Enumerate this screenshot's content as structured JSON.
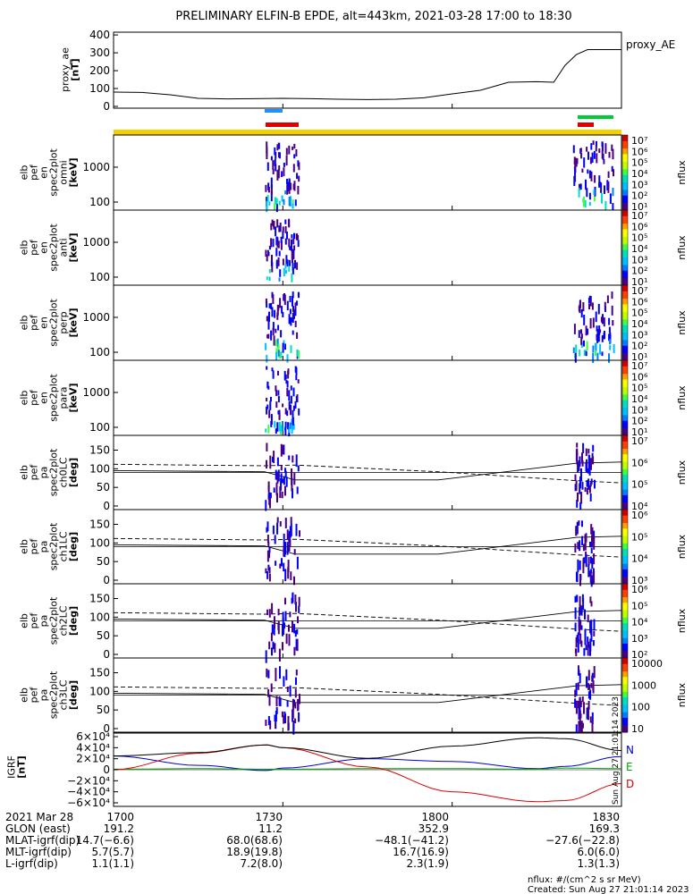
{
  "title": "PRELIMINARY ELFIN-B EPDE, alt=443km, 2021-03-28 17:00 to 18:30",
  "colors": {
    "status_yellow": "#f5d000",
    "science_red": "#e00000",
    "blue_bar": "#1e90ff",
    "green_bar": "#00cc33",
    "grf_north": "#0000cc",
    "grf_east": "#00aa00",
    "grf_down": "#dd0000"
  },
  "ae_panel": {
    "ylabel_lines": [
      "proxy_ae",
      "[nT]"
    ],
    "yticks": [
      "400",
      "300",
      "200",
      "100",
      "0"
    ],
    "legend": "proxy_AE"
  },
  "spec_panels": [
    {
      "ylabel_lines": [
        "elb",
        "pef",
        "en",
        "spec2plot",
        "omni",
        "[keV]"
      ],
      "yticks": [
        "1000",
        "100"
      ],
      "cbar_ticks": [
        "10⁷",
        "10⁶",
        "10⁵",
        "10⁴",
        "10³",
        "10²",
        "10¹"
      ],
      "cbar_label": "nflux"
    },
    {
      "ylabel_lines": [
        "elb",
        "pef",
        "en",
        "spec2plot",
        "anti",
        "[keV]"
      ],
      "yticks": [
        "1000",
        "100"
      ],
      "cbar_ticks": [
        "10⁷",
        "10⁶",
        "10⁵",
        "10⁴",
        "10³",
        "10²",
        "10¹"
      ],
      "cbar_label": "nflux"
    },
    {
      "ylabel_lines": [
        "elb",
        "pef",
        "en",
        "spec2plot",
        "perp",
        "[keV]"
      ],
      "yticks": [
        "1000",
        "100"
      ],
      "cbar_ticks": [
        "10⁷",
        "10⁶",
        "10⁵",
        "10⁴",
        "10³",
        "10²",
        "10¹"
      ],
      "cbar_label": "nflux"
    },
    {
      "ylabel_lines": [
        "elb",
        "pef",
        "en",
        "spec2plot",
        "para",
        "[keV]"
      ],
      "yticks": [
        "1000",
        "100"
      ],
      "cbar_ticks": [
        "10⁷",
        "10⁶",
        "10⁵",
        "10⁴",
        "10³",
        "10²",
        "10¹"
      ],
      "cbar_label": "nflux"
    }
  ],
  "pa_panels": [
    {
      "ylabel_lines": [
        "elb",
        "pef",
        "pa",
        "spec2plot",
        "ch0LC",
        "[deg]"
      ],
      "yticks": [
        "150",
        "100",
        "50",
        "0"
      ],
      "cbar_ticks": [
        "10⁷",
        "10⁶",
        "10⁵",
        "10⁴"
      ],
      "cbar_label": "nflux"
    },
    {
      "ylabel_lines": [
        "elb",
        "pef",
        "pa",
        "spec2plot",
        "ch1LC",
        "[deg]"
      ],
      "yticks": [
        "150",
        "100",
        "50",
        "0"
      ],
      "cbar_ticks": [
        "10⁶",
        "10⁵",
        "10⁴",
        "10³"
      ],
      "cbar_label": "nflux"
    },
    {
      "ylabel_lines": [
        "elb",
        "pef",
        "pa",
        "spec2plot",
        "ch2LC",
        "[deg]"
      ],
      "yticks": [
        "150",
        "100",
        "50",
        "0"
      ],
      "cbar_ticks": [
        "10⁶",
        "10⁵",
        "10⁴",
        "10³",
        "10²"
      ],
      "cbar_label": "nflux"
    },
    {
      "ylabel_lines": [
        "elb",
        "pef",
        "pa",
        "spec2plot",
        "ch3LC",
        "[deg]"
      ],
      "yticks": [
        "150",
        "100",
        "50",
        "0"
      ],
      "cbar_ticks": [
        "10000",
        "1000",
        "100",
        "10"
      ],
      "cbar_label": "nflux"
    }
  ],
  "grf_panel": {
    "ylabel_lines": [
      "IGRF",
      "[nT]"
    ],
    "yticks": [
      "6×10⁴",
      "4×10⁴",
      "2×10⁴",
      "0",
      "−2×10⁴",
      "−4×10⁴",
      "−6×10⁴"
    ],
    "legend": [
      "N",
      "E",
      "D"
    ],
    "side_stamp": "Sun Aug 27 21:01:14 2023"
  },
  "footer": {
    "row_labels": [
      "2021 Mar 28",
      "GLON (east)",
      "MLAT-igrf(dip)",
      "MLT-igrf(dip)",
      "L-igrf(dip)"
    ],
    "columns": [
      {
        "values": [
          "1700",
          "191.2",
          "14.7(−6.6)",
          "5.7(5.7)",
          "1.1(1.1)"
        ]
      },
      {
        "values": [
          "1730",
          "11.2",
          "68.0(68.6)",
          "18.9(19.8)",
          "7.2(8.0)"
        ]
      },
      {
        "values": [
          "1800",
          "352.9",
          "−48.1(−41.2)",
          "16.7(16.9)",
          "2.3(1.9)"
        ]
      },
      {
        "values": [
          "1830",
          "169.3",
          "−27.6(−22.8)",
          "6.0(6.0)",
          "1.3(1.3)"
        ]
      }
    ],
    "note": "nflux: #/(cm^2 s sr MeV)",
    "created": "Created: Sun Aug 27 21:01:14 2023"
  },
  "chart_data": [
    {
      "type": "line",
      "name": "proxy_AE",
      "x": [
        "17:00",
        "17:05",
        "17:10",
        "17:15",
        "17:20",
        "17:25",
        "17:30",
        "17:35",
        "17:40",
        "17:45",
        "17:50",
        "17:55",
        "18:00",
        "18:05",
        "18:10",
        "18:15",
        "18:18",
        "18:20",
        "18:22",
        "18:24",
        "18:27",
        "18:30"
      ],
      "values": [
        80,
        78,
        65,
        45,
        42,
        43,
        45,
        43,
        40,
        38,
        40,
        48,
        70,
        90,
        135,
        138,
        135,
        230,
        290,
        318,
        318,
        318
      ],
      "ylim": [
        0,
        400
      ],
      "xlim": [
        "17:00",
        "18:30"
      ]
    },
    {
      "type": "heatmap",
      "name": "spec2plot omni",
      "ylabel": "[keV]",
      "yscale": "log",
      "ylim": [
        60,
        7000
      ],
      "zscale": "log",
      "zlim": [
        10,
        10000000
      ]
    },
    {
      "type": "line",
      "name": "IGRF",
      "x": [
        "17:00",
        "17:15",
        "17:27",
        "17:30",
        "17:45",
        "18:00",
        "18:15",
        "18:20",
        "18:30"
      ],
      "series": [
        {
          "name": "N",
          "values": [
            25000,
            8000,
            -1500,
            3000,
            20000,
            15000,
            2000,
            6000,
            24000
          ]
        },
        {
          "name": "E",
          "values": [
            1000,
            2000,
            1000,
            1000,
            2000,
            2000,
            1000,
            3000,
            2000
          ]
        },
        {
          "name": "D",
          "values": [
            0,
            30000,
            45000,
            40000,
            5000,
            -40000,
            -58000,
            -56000,
            -25000
          ]
        }
      ],
      "ylim": [
        -60000,
        60000
      ]
    }
  ]
}
